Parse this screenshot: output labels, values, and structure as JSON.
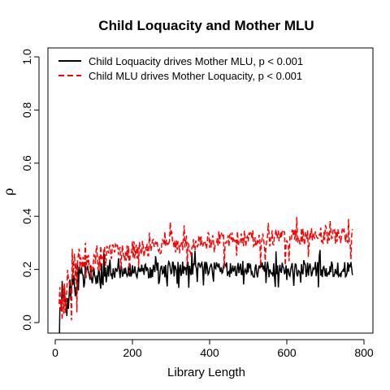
{
  "chart_data": {
    "type": "line",
    "title": "Child Loquacity and Mother MLU",
    "xlabel": "Library Length",
    "ylabel": "ρ",
    "xlim": [
      0,
      800
    ],
    "ylim": [
      0,
      1
    ],
    "xticks": [
      "0",
      "200",
      "400",
      "600",
      "800"
    ],
    "yticks": [
      "0.0",
      "0.2",
      "0.4",
      "0.6",
      "0.8",
      "1.0"
    ],
    "legend": {
      "position": "top-left"
    },
    "series": [
      {
        "name": "Child Loquacity drives Mother MLU, p < 0.001",
        "color": "#000000",
        "style": "solid",
        "x_range": [
          10,
          770
        ],
        "points": [
          [
            10,
            0.02
          ],
          [
            20,
            0.1
          ],
          [
            30,
            0.12
          ],
          [
            45,
            0.15
          ],
          [
            60,
            0.16
          ],
          [
            80,
            0.17
          ],
          [
            100,
            0.18
          ],
          [
            130,
            0.19
          ],
          [
            160,
            0.19
          ],
          [
            200,
            0.195
          ],
          [
            300,
            0.2
          ],
          [
            400,
            0.2
          ],
          [
            500,
            0.2
          ],
          [
            600,
            0.2
          ],
          [
            700,
            0.2
          ],
          [
            770,
            0.2
          ]
        ],
        "noise": 0.03
      },
      {
        "name": "Child MLU drives Mother Loquacity, p < 0.001",
        "color": "#ff0000",
        "style": "dashed",
        "x_range": [
          10,
          770
        ],
        "points": [
          [
            10,
            0.0
          ],
          [
            20,
            0.08
          ],
          [
            30,
            0.13
          ],
          [
            45,
            0.17
          ],
          [
            60,
            0.2
          ],
          [
            80,
            0.22
          ],
          [
            100,
            0.24
          ],
          [
            150,
            0.26
          ],
          [
            200,
            0.27
          ],
          [
            300,
            0.29
          ],
          [
            400,
            0.31
          ],
          [
            500,
            0.32
          ],
          [
            600,
            0.32
          ],
          [
            700,
            0.33
          ],
          [
            770,
            0.33
          ]
        ],
        "noise": 0.035
      }
    ]
  }
}
